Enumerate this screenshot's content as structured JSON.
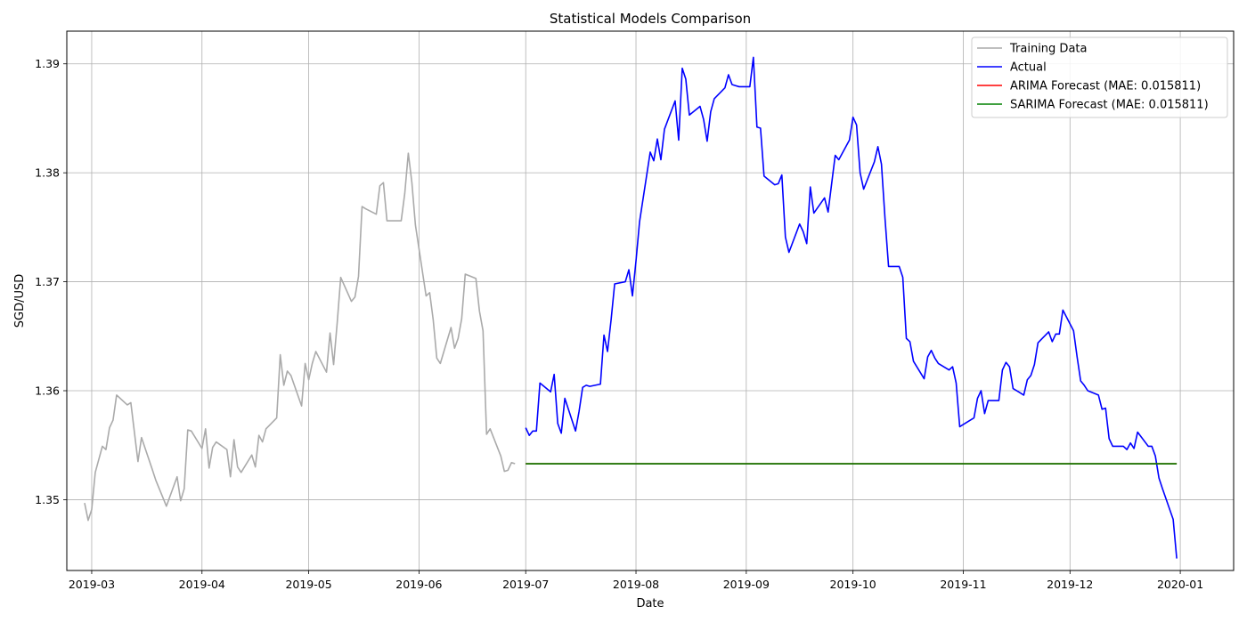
{
  "chart_data": {
    "type": "line",
    "title": "Statistical Models Comparison",
    "xlabel": "Date",
    "ylabel": "SGD/USD",
    "xlim": [
      "2019-02-22",
      "2020-01-16"
    ],
    "ylim": [
      1.3435,
      1.393
    ],
    "grid": true,
    "legend_position": "top-right",
    "x_ticks": [
      "2019-03-01",
      "2019-04-01",
      "2019-05-01",
      "2019-06-01",
      "2019-07-01",
      "2019-08-01",
      "2019-09-01",
      "2019-10-01",
      "2019-11-01",
      "2019-12-01",
      "2020-01-01"
    ],
    "x_tick_labels": [
      "2019-03",
      "2019-04",
      "2019-05",
      "2019-06",
      "2019-07",
      "2019-08",
      "2019-09",
      "2019-10",
      "2019-11",
      "2019-12",
      "2020-01"
    ],
    "y_ticks": [
      1.35,
      1.36,
      1.37,
      1.38,
      1.39
    ],
    "y_tick_labels": [
      "1.35",
      "1.36",
      "1.37",
      "1.38",
      "1.39"
    ],
    "series": [
      {
        "name": "Training Data",
        "color": "#aaaaaa",
        "x": [
          "2019-02-27",
          "2019-02-28",
          "2019-03-01",
          "2019-03-02",
          "2019-03-04",
          "2019-03-05",
          "2019-03-06",
          "2019-03-07",
          "2019-03-08",
          "2019-03-11",
          "2019-03-12",
          "2019-03-13",
          "2019-03-14",
          "2019-03-15",
          "2019-03-18",
          "2019-03-19",
          "2019-03-20",
          "2019-03-21",
          "2019-03-22",
          "2019-03-25",
          "2019-03-26",
          "2019-03-27",
          "2019-03-28",
          "2019-03-29",
          "2019-04-01",
          "2019-04-02",
          "2019-04-03",
          "2019-04-04",
          "2019-04-05",
          "2019-04-08",
          "2019-04-09",
          "2019-04-10",
          "2019-04-11",
          "2019-04-12",
          "2019-04-15",
          "2019-04-16",
          "2019-04-17",
          "2019-04-18",
          "2019-04-19",
          "2019-04-22",
          "2019-04-23",
          "2019-04-24",
          "2019-04-25",
          "2019-04-26",
          "2019-04-29",
          "2019-04-30",
          "2019-05-01",
          "2019-05-02",
          "2019-05-03",
          "2019-05-06",
          "2019-05-07",
          "2019-05-08",
          "2019-05-09",
          "2019-05-10",
          "2019-05-13",
          "2019-05-14",
          "2019-05-15",
          "2019-05-16",
          "2019-05-17",
          "2019-05-20",
          "2019-05-21",
          "2019-05-22",
          "2019-05-23",
          "2019-05-24",
          "2019-05-27",
          "2019-05-28",
          "2019-05-29",
          "2019-05-30",
          "2019-05-31",
          "2019-06-03",
          "2019-06-04",
          "2019-06-05",
          "2019-06-06",
          "2019-06-07",
          "2019-06-10",
          "2019-06-11",
          "2019-06-12",
          "2019-06-13",
          "2019-06-14",
          "2019-06-17",
          "2019-06-18",
          "2019-06-19",
          "2019-06-20",
          "2019-06-21",
          "2019-06-24",
          "2019-06-25",
          "2019-06-26",
          "2019-06-27",
          "2019-06-28"
        ],
        "values": [
          1.3497,
          1.3481,
          1.3491,
          1.3525,
          1.3549,
          1.3546,
          1.3566,
          1.3573,
          1.3596,
          1.3587,
          1.3589,
          1.3562,
          1.3535,
          1.3557,
          1.3528,
          1.3518,
          1.351,
          1.3502,
          1.3494,
          1.3521,
          1.3499,
          1.351,
          1.3564,
          1.3563,
          1.3547,
          1.3565,
          1.3529,
          1.3548,
          1.3553,
          1.3546,
          1.3521,
          1.3555,
          1.353,
          1.3525,
          1.3541,
          1.353,
          1.3559,
          1.3553,
          1.3565,
          1.3575,
          1.3633,
          1.3605,
          1.3618,
          1.3614,
          1.3586,
          1.3625,
          1.361,
          1.3625,
          1.3636,
          1.3617,
          1.3653,
          1.3624,
          1.3662,
          1.3704,
          1.3682,
          1.3686,
          1.3705,
          1.3769,
          1.3767,
          1.3762,
          1.3788,
          1.3791,
          1.3756,
          1.3756,
          1.3756,
          1.3781,
          1.3818,
          1.3791,
          1.3752,
          1.3687,
          1.369,
          1.3665,
          1.363,
          1.3625,
          1.3658,
          1.3639,
          1.3648,
          1.3666,
          1.3707,
          1.3703,
          1.3673,
          1.3655,
          1.356,
          1.3565,
          1.354,
          1.3526,
          1.3527,
          1.3534,
          1.3533
        ]
      },
      {
        "name": "Actual",
        "color": "#0000ff",
        "x": [
          "2019-07-01",
          "2019-07-02",
          "2019-07-03",
          "2019-07-04",
          "2019-07-05",
          "2019-07-08",
          "2019-07-09",
          "2019-07-10",
          "2019-07-11",
          "2019-07-12",
          "2019-07-15",
          "2019-07-16",
          "2019-07-17",
          "2019-07-18",
          "2019-07-19",
          "2019-07-22",
          "2019-07-23",
          "2019-07-24",
          "2019-07-25",
          "2019-07-26",
          "2019-07-29",
          "2019-07-30",
          "2019-07-31",
          "2019-08-01",
          "2019-08-02",
          "2019-08-05",
          "2019-08-06",
          "2019-08-07",
          "2019-08-08",
          "2019-08-09",
          "2019-08-12",
          "2019-08-13",
          "2019-08-14",
          "2019-08-15",
          "2019-08-16",
          "2019-08-19",
          "2019-08-20",
          "2019-08-21",
          "2019-08-22",
          "2019-08-23",
          "2019-08-26",
          "2019-08-27",
          "2019-08-28",
          "2019-08-29",
          "2019-08-30",
          "2019-09-02",
          "2019-09-03",
          "2019-09-04",
          "2019-09-05",
          "2019-09-06",
          "2019-09-09",
          "2019-09-10",
          "2019-09-11",
          "2019-09-12",
          "2019-09-13",
          "2019-09-16",
          "2019-09-17",
          "2019-09-18",
          "2019-09-19",
          "2019-09-20",
          "2019-09-23",
          "2019-09-24",
          "2019-09-25",
          "2019-09-26",
          "2019-09-27",
          "2019-09-30",
          "2019-10-01",
          "2019-10-02",
          "2019-10-03",
          "2019-10-04",
          "2019-10-07",
          "2019-10-08",
          "2019-10-09",
          "2019-10-10",
          "2019-10-11",
          "2019-10-14",
          "2019-10-15",
          "2019-10-16",
          "2019-10-17",
          "2019-10-18",
          "2019-10-21",
          "2019-10-22",
          "2019-10-23",
          "2019-10-24",
          "2019-10-25",
          "2019-10-28",
          "2019-10-29",
          "2019-10-30",
          "2019-10-31",
          "2019-11-01",
          "2019-11-04",
          "2019-11-05",
          "2019-11-06",
          "2019-11-07",
          "2019-11-08",
          "2019-11-11",
          "2019-11-12",
          "2019-11-13",
          "2019-11-14",
          "2019-11-15",
          "2019-11-18",
          "2019-11-19",
          "2019-11-20",
          "2019-11-21",
          "2019-11-22",
          "2019-11-25",
          "2019-11-26",
          "2019-11-27",
          "2019-11-28",
          "2019-11-29",
          "2019-12-02",
          "2019-12-03",
          "2019-12-04",
          "2019-12-05",
          "2019-12-06",
          "2019-12-09",
          "2019-12-10",
          "2019-12-11",
          "2019-12-12",
          "2019-12-13",
          "2019-12-16",
          "2019-12-17",
          "2019-12-18",
          "2019-12-19",
          "2019-12-20",
          "2019-12-23",
          "2019-12-24",
          "2019-12-25",
          "2019-12-26",
          "2019-12-27",
          "2019-12-30",
          "2019-12-31"
        ],
        "values": [
          1.3566,
          1.3559,
          1.3563,
          1.3563,
          1.3607,
          1.3599,
          1.3615,
          1.357,
          1.3561,
          1.3593,
          1.3563,
          1.3581,
          1.3603,
          1.3605,
          1.3604,
          1.3606,
          1.3651,
          1.3636,
          1.3665,
          1.3698,
          1.37,
          1.3711,
          1.3687,
          1.3719,
          1.3755,
          1.3819,
          1.3811,
          1.3831,
          1.3812,
          1.384,
          1.3866,
          1.383,
          1.3896,
          1.3886,
          1.3853,
          1.3861,
          1.3849,
          1.3829,
          1.3856,
          1.3868,
          1.3878,
          1.389,
          1.3881,
          1.388,
          1.3879,
          1.3879,
          1.3906,
          1.3842,
          1.3841,
          1.3797,
          1.3789,
          1.379,
          1.3798,
          1.3741,
          1.3727,
          1.3753,
          1.3746,
          1.3735,
          1.3787,
          1.3763,
          1.3777,
          1.3764,
          1.379,
          1.3816,
          1.3812,
          1.383,
          1.3851,
          1.3844,
          1.38,
          1.3785,
          1.381,
          1.3824,
          1.3808,
          1.3758,
          1.3714,
          1.3714,
          1.3704,
          1.3648,
          1.3645,
          1.3627,
          1.3611,
          1.3631,
          1.3637,
          1.363,
          1.3625,
          1.3619,
          1.3622,
          1.3607,
          1.3567,
          1.3569,
          1.3575,
          1.3593,
          1.36,
          1.3579,
          1.3591,
          1.3591,
          1.3619,
          1.3626,
          1.3622,
          1.3602,
          1.3596,
          1.361,
          1.3614,
          1.3624,
          1.3644,
          1.3654,
          1.3645,
          1.3652,
          1.3652,
          1.3674,
          1.3655,
          1.3631,
          1.3609,
          1.3605,
          1.36,
          1.3596,
          1.3583,
          1.3584,
          1.3556,
          1.3549,
          1.3549,
          1.3546,
          1.3552,
          1.3547,
          1.3562,
          1.3549,
          1.3549,
          1.354,
          1.352,
          1.351,
          1.3482,
          1.3446
        ]
      },
      {
        "name": "ARIMA Forecast (MAE: 0.015811)",
        "color": "#ff0000",
        "x": [
          "2019-07-01",
          "2019-12-31"
        ],
        "values": [
          1.3533,
          1.3533
        ]
      },
      {
        "name": "SARIMA Forecast (MAE: 0.015811)",
        "color": "#008000",
        "x": [
          "2019-07-01",
          "2019-12-31"
        ],
        "values": [
          1.3533,
          1.3533
        ]
      }
    ]
  }
}
